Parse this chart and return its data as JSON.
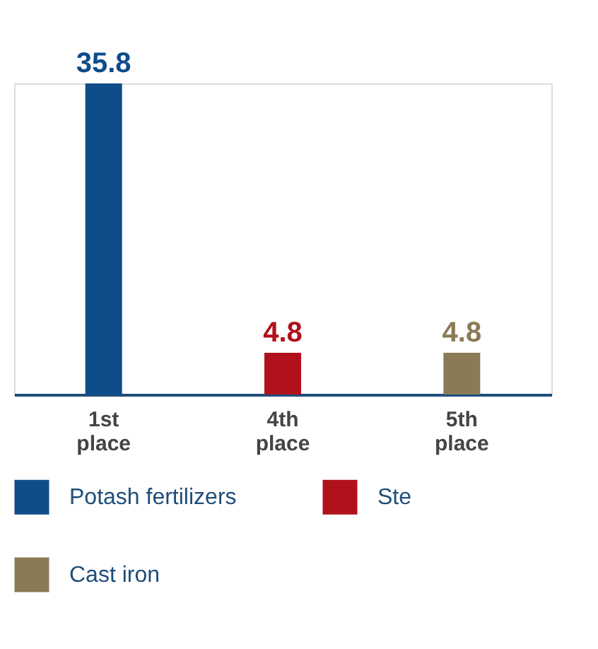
{
  "chart_data": {
    "type": "bar",
    "categories": [
      "1st place",
      "4th place",
      "5th place"
    ],
    "series": [
      {
        "name": "Potash fertilizers",
        "color": "#0f4c8a",
        "values": [
          35.8,
          null,
          null
        ]
      },
      {
        "name": "Ste",
        "color": "#b0111b",
        "values": [
          null,
          4.8,
          null
        ]
      },
      {
        "name": "Cast iron",
        "color": "#8a7a55",
        "values": [
          null,
          null,
          4.8
        ]
      }
    ],
    "data_labels": true,
    "legend": "bottom",
    "grid": false
  }
}
